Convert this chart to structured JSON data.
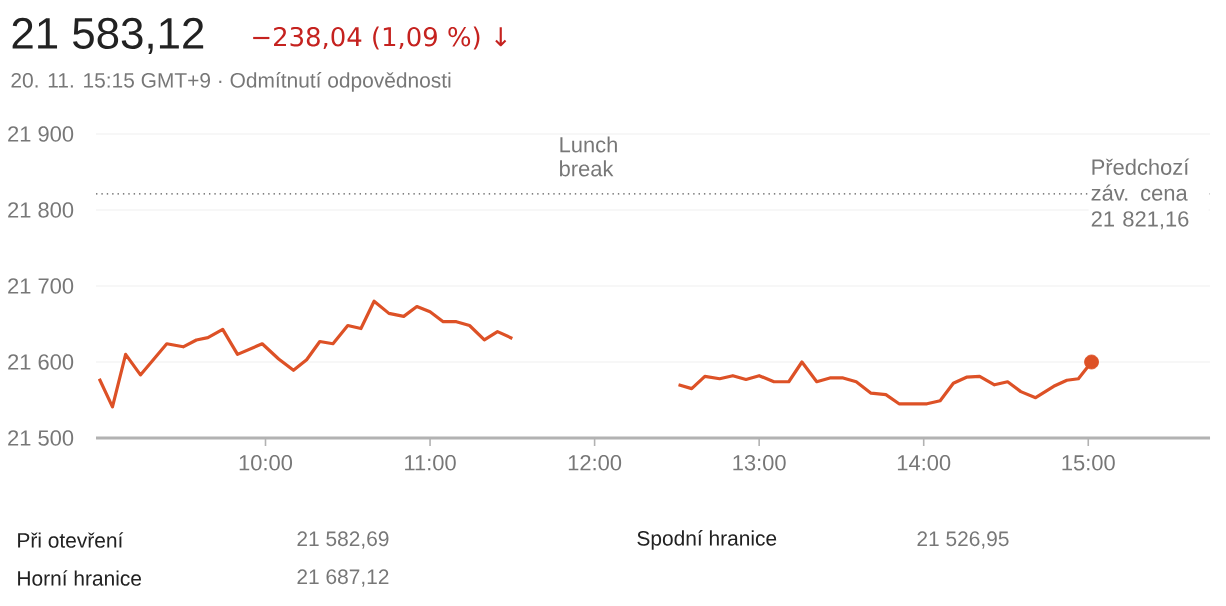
{
  "chart_data": {
    "type": "line",
    "title": "21 583,12",
    "subtitle": "−238,04 (1,09 %) ↓",
    "annotations": [
      "20. 11. 15:15 GMT+9 · Odmítnutí odpovědnosti",
      "Lunch break",
      "Při otevření",
      "21 582,69",
      "Horní hranice",
      "21 687,12",
      "Spodní hranice",
      "21 526,95"
    ],
    "series": [
      {
        "color": "#dd5126",
        "x": [
          8.99,
          9.07,
          9.15,
          9.24,
          9.4,
          9.5,
          9.58,
          9.65,
          9.74,
          9.83,
          9.98,
          10.08,
          10.17,
          10.25,
          10.33,
          10.41,
          10.5,
          10.58,
          10.66,
          10.75,
          10.84,
          10.92,
          11.0,
          11.08,
          11.16,
          11.24,
          11.33,
          11.41,
          11.5,
          12.0,
          12.51,
          12.59,
          12.67,
          12.76,
          12.84,
          12.92,
          13.0,
          13.09,
          13.18,
          13.26,
          13.35,
          13.43,
          13.51,
          13.59,
          13.68,
          13.77,
          13.85,
          13.94,
          14.02,
          14.1,
          14.18,
          14.26,
          14.34,
          14.43,
          14.51,
          14.59,
          14.68,
          14.79,
          14.87,
          14.94,
          15.02
        ],
        "values": [
          21578,
          21541,
          21610,
          21583,
          21624,
          21620,
          21629,
          21632,
          21643,
          21610,
          21624,
          21604,
          21589,
          21603,
          21627,
          21624,
          21648,
          21644,
          21680,
          21664,
          21660,
          21673,
          21666,
          21653,
          21653,
          21648,
          21629,
          21640,
          21631,
          null,
          21570,
          21565,
          21581,
          21578,
          21582,
          21577,
          21582,
          21574,
          21574,
          21600,
          21574,
          21579,
          21579,
          21574,
          21559,
          21557,
          21545,
          21545,
          21545,
          21549,
          21572,
          21580,
          21581,
          21570,
          21574,
          21561,
          21553,
          21568,
          21576,
          21578,
          21600
        ]
      },
      {
        "type": "scatter",
        "color": "#dd5126",
        "marker": "circle",
        "x": [
          15.02
        ],
        "values": [
          21600
        ]
      }
    ],
    "xlim": [
      8.97,
      15.74
    ],
    "ylim": [
      21500,
      21900
    ],
    "xticks": [
      {
        "value": 10,
        "label": "10:00"
      },
      {
        "value": 11,
        "label": "11:00"
      },
      {
        "value": 12,
        "label": "12:00"
      },
      {
        "value": 13,
        "label": "13:00"
      },
      {
        "value": 14,
        "label": "14:00"
      },
      {
        "value": 15,
        "label": "15:00"
      }
    ],
    "yticks": [
      {
        "value": 21500,
        "label": "21 500"
      },
      {
        "value": 21600,
        "label": "21 600"
      },
      {
        "value": 21700,
        "label": "21 700"
      },
      {
        "value": 21800,
        "label": "21 800"
      },
      {
        "value": 21900,
        "label": "21 900"
      }
    ],
    "grid": "y",
    "ref_lines": [
      {
        "axis": "y",
        "value": 21821.16,
        "label": "Předchozí záv. cena 21 821,16",
        "line_style": "dotted",
        "color": "#555555"
      }
    ]
  }
}
